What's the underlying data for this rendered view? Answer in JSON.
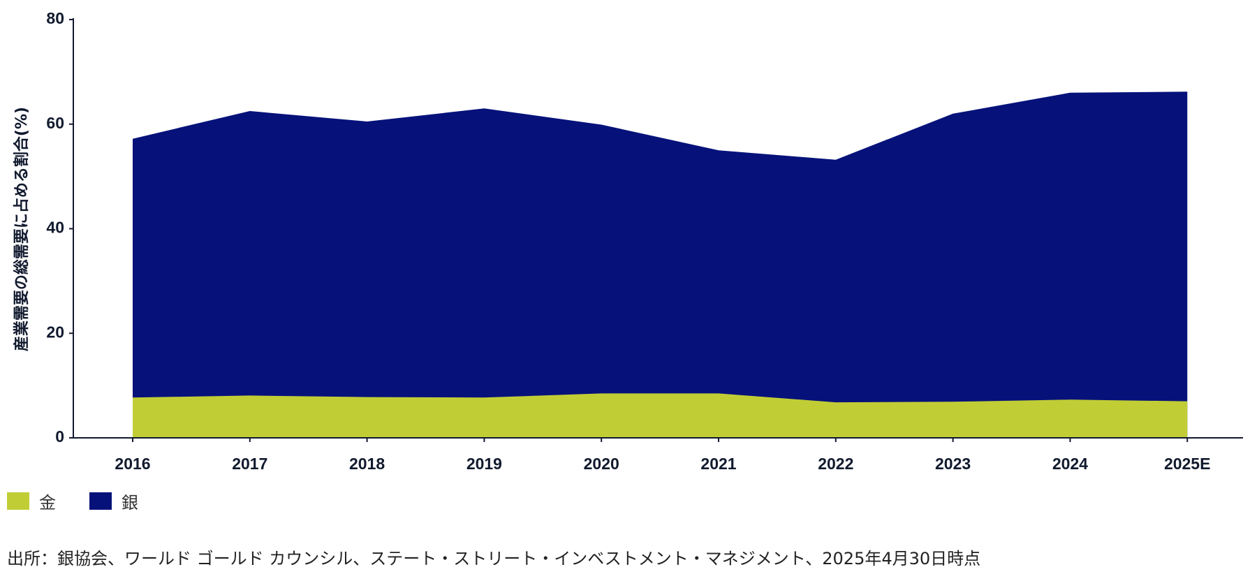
{
  "chart_data": {
    "type": "area",
    "ylabel": "産業需要の総需要に占める割合(%)",
    "xlabel": "",
    "categories": [
      "2016",
      "2017",
      "2018",
      "2019",
      "2020",
      "2021",
      "2022",
      "2023",
      "2024",
      "2025E"
    ],
    "ylim": [
      0,
      80
    ],
    "yticks": [
      0,
      20,
      40,
      60,
      80
    ],
    "grid": false,
    "legend_position": "bottom-left",
    "series": [
      {
        "name": "金",
        "color": "#c1cd35",
        "values": [
          7.7,
          8.1,
          7.8,
          7.7,
          8.5,
          8.5,
          6.8,
          6.9,
          7.3,
          7.0
        ]
      },
      {
        "name": "銀",
        "color": "#06127a",
        "values": [
          57.2,
          62.5,
          60.5,
          63.0,
          59.9,
          55.0,
          53.2,
          62.0,
          66.0,
          66.2
        ]
      }
    ]
  },
  "legend": {
    "items": [
      {
        "label": "金",
        "color": "#c1cd35"
      },
      {
        "label": "銀",
        "color": "#06127a"
      }
    ]
  },
  "source": "出所：銀協会、ワールド ゴールド カウンシル、ステート・ストリート・インベストメント・マネジメント、2025年4月30日時点"
}
